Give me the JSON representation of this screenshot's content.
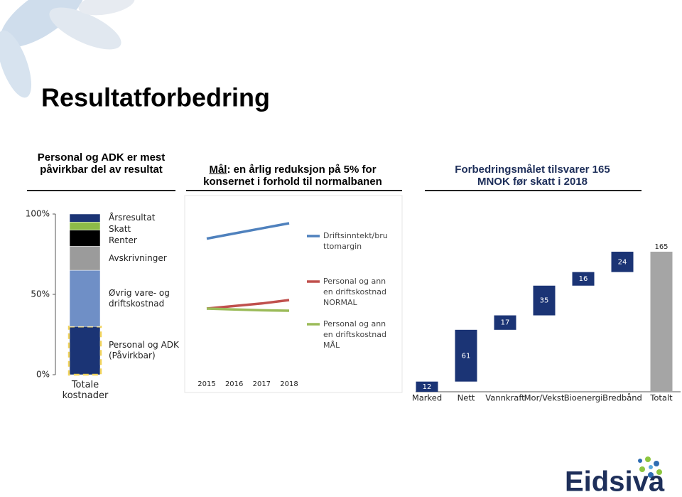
{
  "header": {
    "title": "Resultatforbedring"
  },
  "logo": "Eidsiva",
  "chart_data": [
    {
      "type": "stacked_bar",
      "title": "Personal og ADK er mest påvirkbar del av resultat",
      "categories": [
        "Totale kostnader"
      ],
      "series": [
        {
          "name": "Personal og ADK (Påvirkbar)",
          "color": "#1b3475",
          "values": [
            30
          ]
        },
        {
          "name": "Øvrig vare- og driftskostnad",
          "color": "#6f8fc6",
          "values": [
            35
          ]
        },
        {
          "name": "Avskrivninger",
          "color": "#9b9b9b",
          "values": [
            15
          ]
        },
        {
          "name": "Renter",
          "color": "#000000",
          "values": [
            10
          ]
        },
        {
          "name": "Skatt",
          "color": "#8dbb48",
          "values": [
            5
          ]
        },
        {
          "name": "Årsresultat",
          "color": "#1b3475",
          "values": [
            5
          ]
        }
      ],
      "ylim": [
        0,
        100
      ],
      "yticks": [
        {
          "value": 0,
          "label": "0%"
        },
        {
          "value": 50,
          "label": "50%"
        },
        {
          "value": 100,
          "label": "100%"
        }
      ]
    },
    {
      "type": "line",
      "title_lead": "Mål",
      "title": ": en årlig reduksjon på 5% for konsernet i forhold til normalbanen",
      "categories": [
        "2015",
        "2016",
        "2017",
        "2018"
      ],
      "series": [
        {
          "name": "Driftsinntekt/bruttomargin",
          "color": "#4f81bd",
          "values": [
            81,
            84,
            87,
            90
          ]
        },
        {
          "name": "Personal og annen driftskostnad NORMAL",
          "color": "#c0504d",
          "values": [
            40,
            41.5,
            43,
            45
          ]
        },
        {
          "name": "Personal og annen driftskostnad MÅL",
          "color": "#9bbb59",
          "values": [
            40,
            39.5,
            39,
            38.75
          ]
        }
      ],
      "ylim": [
        0,
        100
      ]
    },
    {
      "type": "waterfall",
      "title": "Forbedringsmålet tilsvarer 165 MNOK før skatt i 2018",
      "categories": [
        "Marked",
        "Nett",
        "Vannkraft",
        "Mor/Vekst",
        "Bioenergi",
        "Bredbånd",
        "Totalt"
      ],
      "values": [
        12,
        61,
        17,
        35,
        16,
        24,
        165
      ],
      "color": "#1b3475",
      "total_color": "#a5a5a5",
      "ylim": [
        0,
        165
      ]
    }
  ]
}
